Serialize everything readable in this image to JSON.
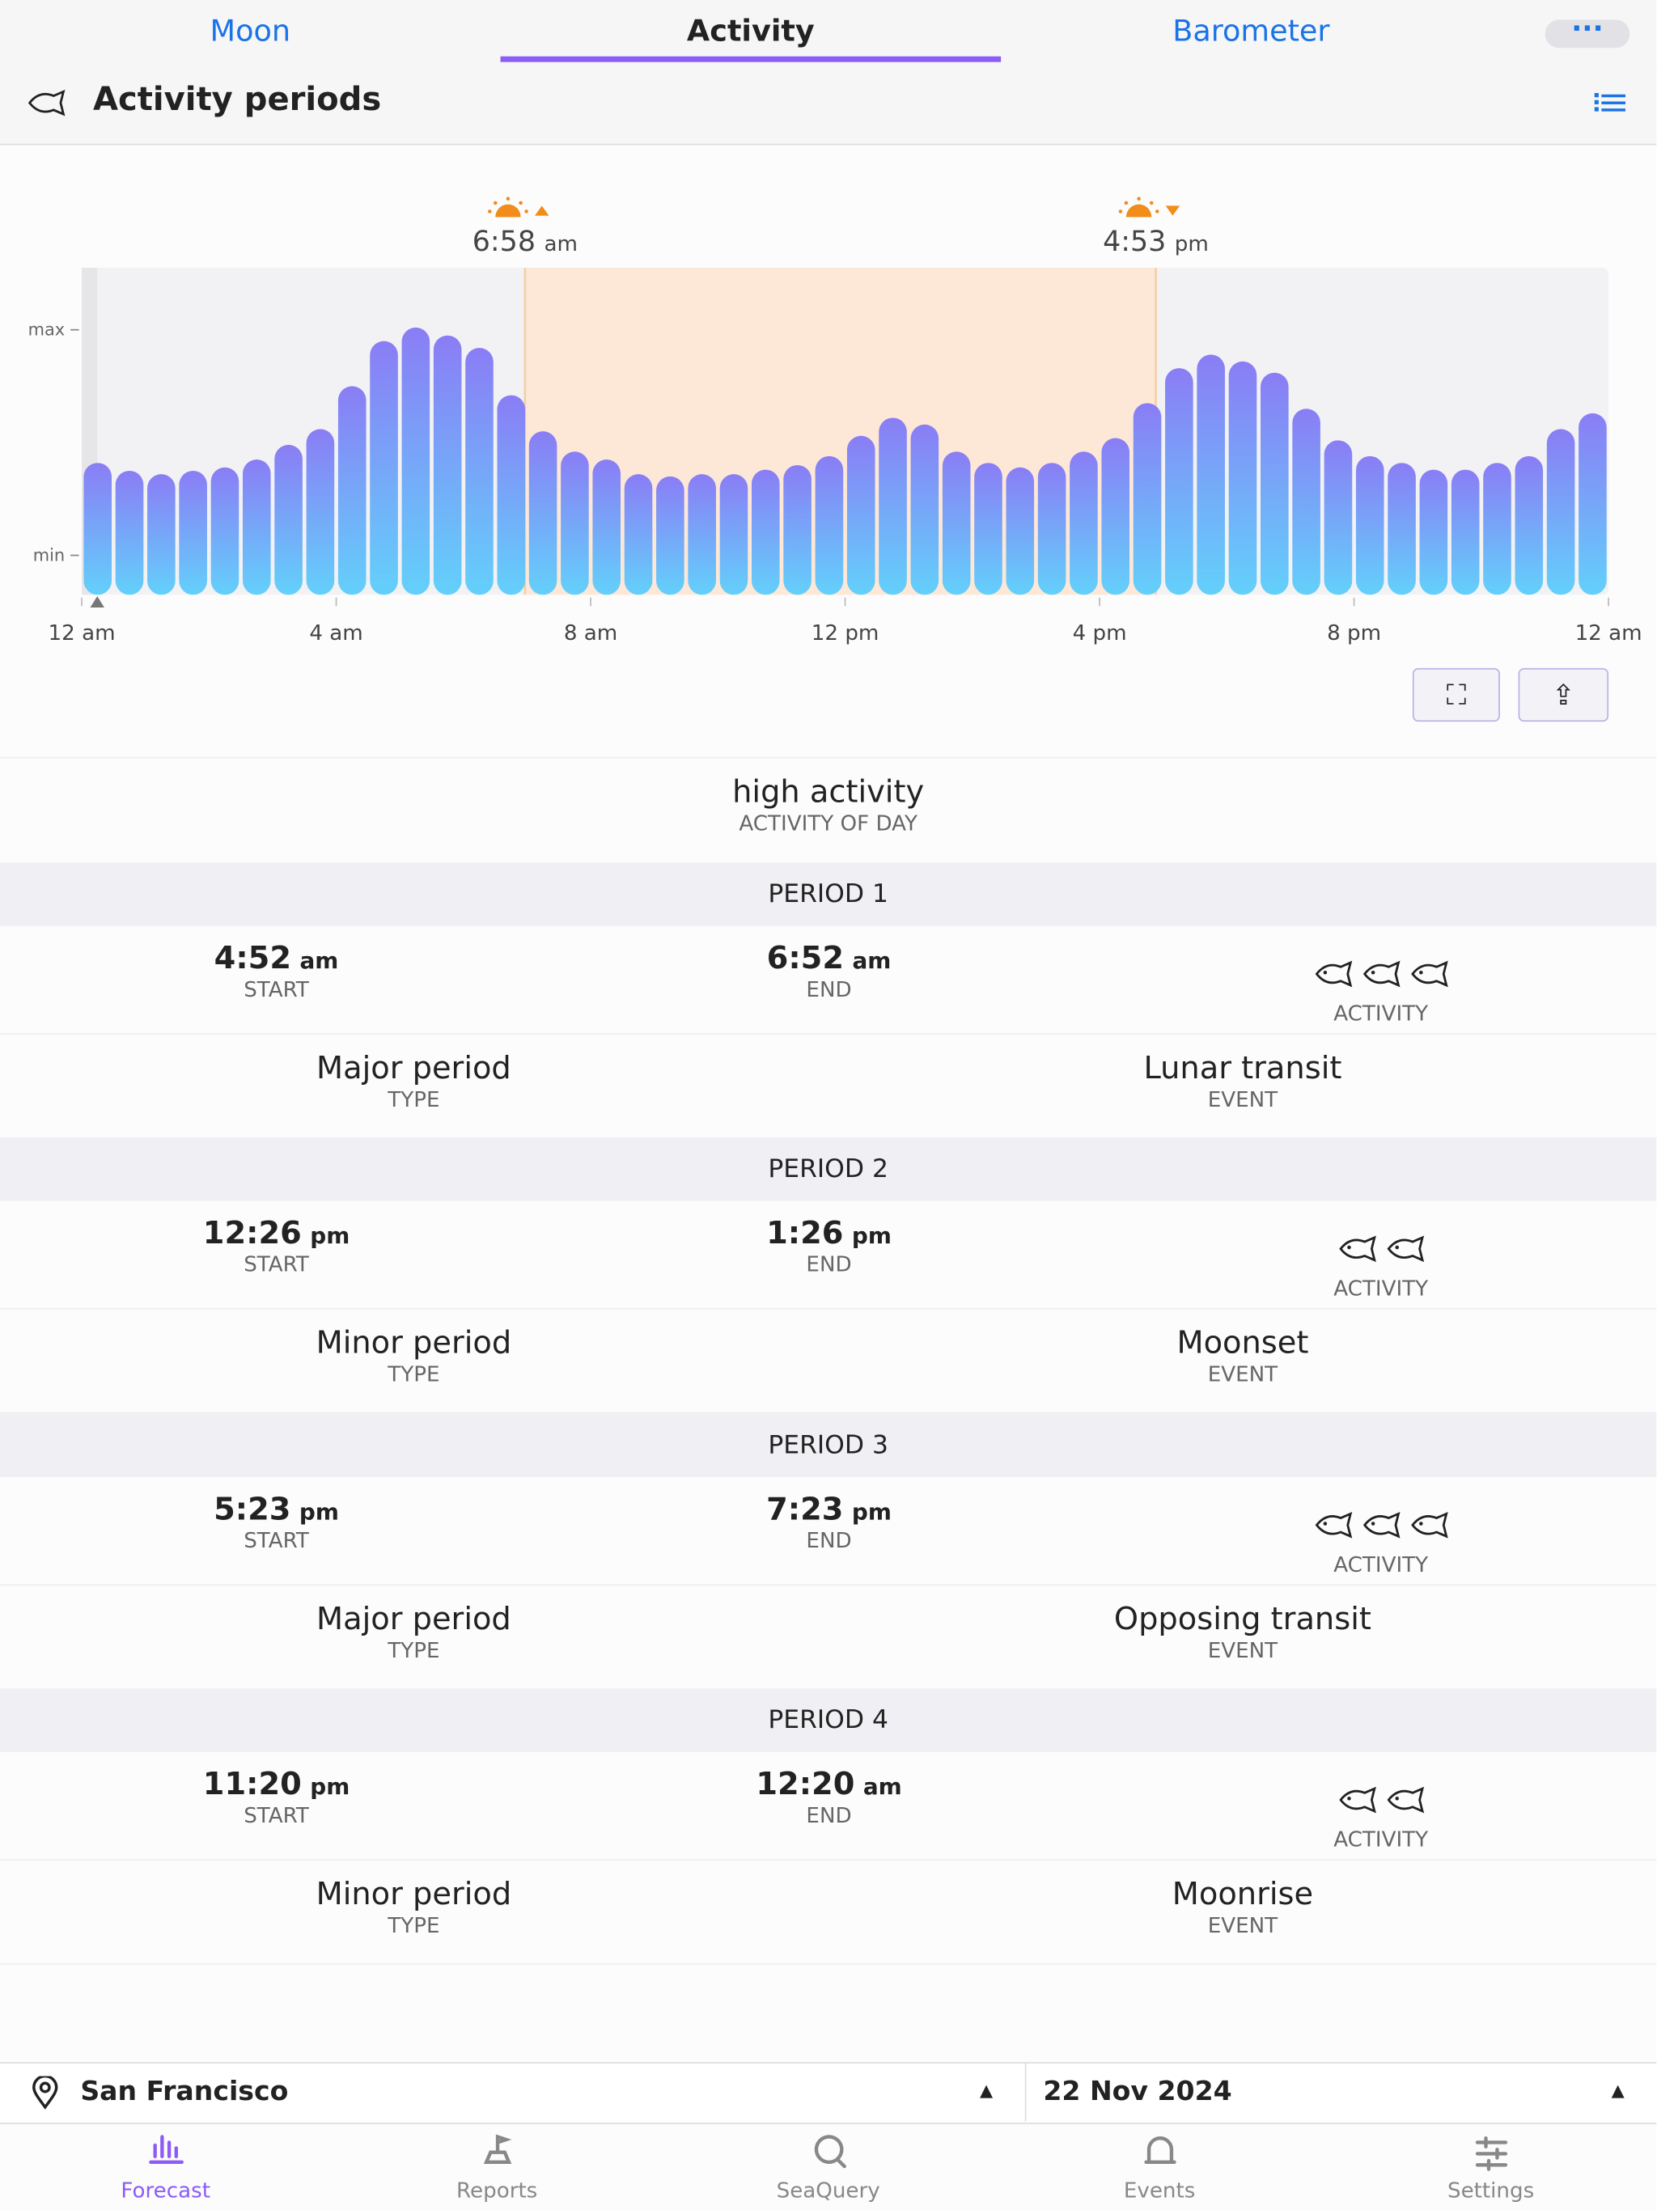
{
  "tabs": [
    "Moon",
    "Activity",
    "Barometer"
  ],
  "header": {
    "title": "Activity periods"
  },
  "chart_data": {
    "type": "bar",
    "x": [
      0.25,
      0.75,
      1.25,
      1.75,
      2.25,
      2.75,
      3.25,
      3.75,
      4.25,
      4.75,
      5.25,
      5.75,
      6.25,
      6.75,
      7.25,
      7.75,
      8.25,
      8.75,
      9.25,
      9.75,
      10.25,
      10.75,
      11.25,
      11.75,
      12.25,
      12.75,
      13.25,
      13.75,
      14.25,
      14.75,
      15.25,
      15.75,
      16.25,
      16.75,
      17.25,
      17.75,
      18.25,
      18.75,
      19.25,
      19.75,
      20.25,
      20.75,
      21.25,
      21.75,
      22.25,
      22.75,
      23.25,
      23.75
    ],
    "values": [
      41,
      37.5,
      36,
      37.5,
      39,
      42.5,
      49,
      56,
      75,
      95,
      101,
      97.5,
      92,
      71,
      55,
      46,
      42.5,
      36,
      35,
      36,
      36,
      38,
      40,
      44,
      53,
      61,
      58,
      46,
      41,
      39,
      41,
      46,
      52,
      67.5,
      83,
      89,
      86,
      81,
      65,
      51,
      44,
      41,
      38,
      38,
      41,
      44,
      56,
      63
    ],
    "colors": [
      "#8a7df5",
      "#63d0fb"
    ],
    "xlim": [
      0,
      24
    ],
    "xticks": [
      {
        "value": 0,
        "label": "12 am"
      },
      {
        "value": 4,
        "label": "4 am"
      },
      {
        "value": 8,
        "label": "8 am"
      },
      {
        "value": 12,
        "label": "12 pm"
      },
      {
        "value": 16,
        "label": "4 pm"
      },
      {
        "value": 20,
        "label": "8 pm"
      },
      {
        "value": 24,
        "label": "12 am"
      }
    ],
    "ylim": [
      -17.5,
      127.5
    ],
    "yticks": [
      {
        "value": 0,
        "label": "min"
      },
      {
        "value": 100,
        "label": "max"
      }
    ],
    "annotations": [
      {
        "x": 6.967,
        "time": "6:58",
        "ampm": "am"
      },
      {
        "x": 16.883,
        "time": "4:53",
        "ampm": "pm"
      }
    ]
  },
  "summary": {
    "value": "high activity",
    "label": "ACTIVITY OF DAY"
  },
  "periods": [
    {
      "title": "PERIOD 1",
      "start": "4:52",
      "start_ampm": "am",
      "start_label": "START",
      "end": "6:52",
      "end_ampm": "am",
      "end_label": "END",
      "activity": 3,
      "activity_label": "ACTIVITY",
      "type": "Major period",
      "type_label": "TYPE",
      "event": "Lunar transit",
      "event_label": "EVENT"
    },
    {
      "title": "PERIOD 2",
      "start": "12:26",
      "start_ampm": "pm",
      "start_label": "START",
      "end": "1:26",
      "end_ampm": "pm",
      "end_label": "END",
      "activity": 2,
      "activity_label": "ACTIVITY",
      "type": "Minor period",
      "type_label": "TYPE",
      "event": "Moonset",
      "event_label": "EVENT"
    },
    {
      "title": "PERIOD 3",
      "start": "5:23",
      "start_ampm": "pm",
      "start_label": "START",
      "end": "7:23",
      "end_ampm": "pm",
      "end_label": "END",
      "activity": 3,
      "activity_label": "ACTIVITY",
      "type": "Major period",
      "type_label": "TYPE",
      "event": "Opposing transit",
      "event_label": "EVENT"
    },
    {
      "title": "PERIOD 4",
      "start": "11:20",
      "start_ampm": "pm",
      "start_label": "START",
      "end": "12:20",
      "end_ampm": "am",
      "end_label": "END",
      "activity": 2,
      "activity_label": "ACTIVITY",
      "type": "Minor period",
      "type_label": "TYPE",
      "event": "Moonrise",
      "event_label": "EVENT"
    }
  ],
  "footer": {
    "location": "San Francisco",
    "date": "22 Nov 2024"
  },
  "nav": [
    "Forecast",
    "Reports",
    "SeaQuery",
    "Events",
    "Settings"
  ]
}
